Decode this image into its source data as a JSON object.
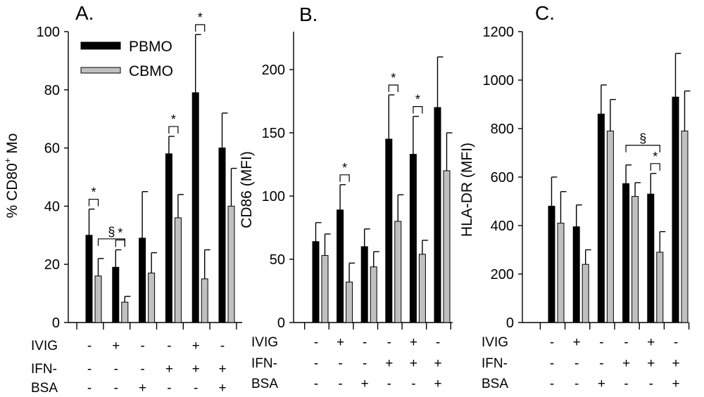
{
  "chart_data": [
    {
      "type": "bar",
      "panel_label": "A.",
      "ylabel_main": "% CD80",
      "ylabel_sup": "+",
      "ylabel_tail": " Mo",
      "ylim": [
        0,
        100
      ],
      "yticks": [
        0,
        20,
        40,
        60,
        80,
        100
      ],
      "categories": [
        "1",
        "2",
        "3",
        "4",
        "5",
        "6"
      ],
      "series": [
        {
          "name": "PBMO",
          "color": "#000000",
          "values": [
            30,
            19,
            29,
            58,
            79,
            60
          ],
          "errors": [
            9,
            6,
            16,
            6,
            20,
            12
          ]
        },
        {
          "name": "CBMO",
          "color": "#c0c0c0",
          "values": [
            16,
            7,
            17,
            36,
            15,
            40
          ],
          "errors": [
            6,
            2,
            7,
            8,
            10,
            13
          ]
        }
      ],
      "legend": "top-left",
      "annotations": [
        {
          "symbol": "*",
          "from": [
            0,
            0
          ],
          "to": [
            0,
            1
          ]
        },
        {
          "symbol": "§",
          "from": [
            0,
            1
          ],
          "to": [
            1,
            1
          ]
        },
        {
          "symbol": "*",
          "from": [
            1,
            0
          ],
          "to": [
            1,
            1
          ]
        },
        {
          "symbol": "*",
          "from": [
            3,
            0
          ],
          "to": [
            3,
            1
          ]
        },
        {
          "symbol": "*",
          "from": [
            4,
            0
          ],
          "to": [
            4,
            1
          ]
        }
      ]
    },
    {
      "type": "bar",
      "panel_label": "B.",
      "ylabel_main": "CD86 (MFI)",
      "ylabel_sup": "",
      "ylabel_tail": "",
      "ylim": [
        0,
        230
      ],
      "yticks": [
        0,
        50,
        100,
        150,
        200
      ],
      "categories": [
        "1",
        "2",
        "3",
        "4",
        "5",
        "6"
      ],
      "series": [
        {
          "name": "PBMO",
          "color": "#000000",
          "values": [
            64,
            89,
            60,
            145,
            133,
            170
          ],
          "errors": [
            15,
            20,
            14,
            35,
            30,
            40
          ]
        },
        {
          "name": "CBMO",
          "color": "#c0c0c0",
          "values": [
            53,
            32,
            44,
            80,
            54,
            120
          ],
          "errors": [
            17,
            15,
            12,
            21,
            11,
            30
          ]
        }
      ],
      "annotations": [
        {
          "symbol": "*",
          "from": [
            1,
            0
          ],
          "to": [
            1,
            1
          ]
        },
        {
          "symbol": "*",
          "from": [
            3,
            0
          ],
          "to": [
            3,
            1
          ]
        },
        {
          "symbol": "*",
          "from": [
            4,
            0
          ],
          "to": [
            4,
            1
          ]
        }
      ]
    },
    {
      "type": "bar",
      "panel_label": "C.",
      "ylabel_main": "HLA-DR (MFI)",
      "ylabel_sup": "",
      "ylabel_tail": "",
      "ylim": [
        0,
        1200
      ],
      "yticks": [
        0,
        200,
        400,
        600,
        800,
        1000,
        1200
      ],
      "categories": [
        "1",
        "2",
        "3",
        "4",
        "5",
        "6"
      ],
      "series": [
        {
          "name": "PBMO",
          "color": "#000000",
          "values": [
            480,
            395,
            860,
            573,
            530,
            930
          ],
          "errors": [
            120,
            90,
            120,
            77,
            85,
            180
          ]
        },
        {
          "name": "CBMO",
          "color": "#c0c0c0",
          "values": [
            410,
            240,
            790,
            520,
            290,
            790
          ],
          "errors": [
            130,
            60,
            130,
            57,
            85,
            165
          ]
        }
      ],
      "annotations": [
        {
          "symbol": "§",
          "from": [
            3,
            0
          ],
          "to": [
            4,
            1
          ]
        },
        {
          "symbol": "*",
          "from": [
            4,
            0
          ],
          "to": [
            4,
            1
          ]
        }
      ]
    }
  ],
  "treatments": {
    "labels": [
      "IVIG",
      "IFN-",
      "BSA"
    ],
    "signs": [
      [
        "-",
        "+",
        "-",
        "-",
        "+",
        "-"
      ],
      [
        "-",
        "-",
        "-",
        "+",
        "+",
        "+"
      ],
      [
        "-",
        "-",
        "+",
        "-",
        "-",
        "+"
      ]
    ]
  }
}
